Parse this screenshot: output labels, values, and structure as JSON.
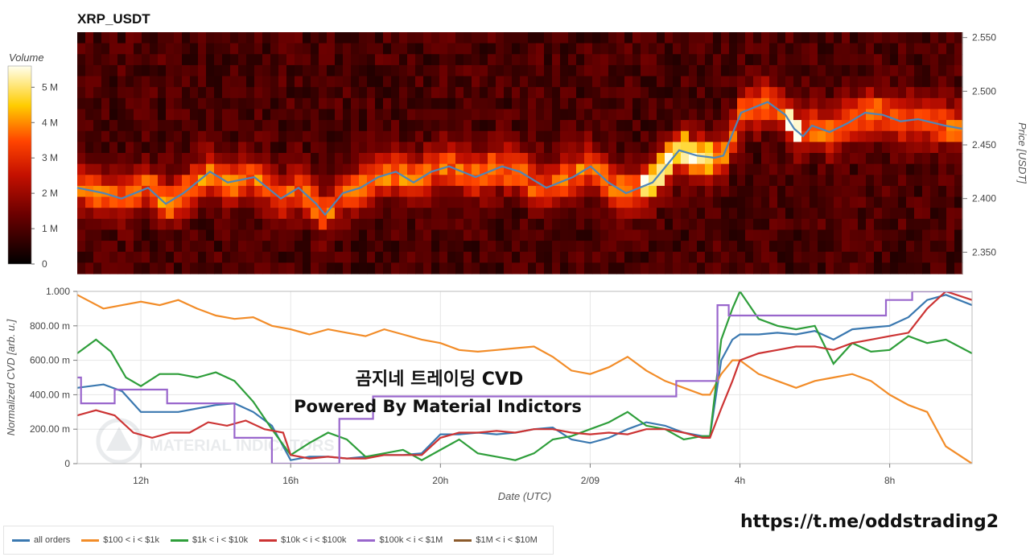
{
  "title": "XRP_USDT",
  "link_text": "https://t.me/oddstrading2",
  "overlay_title": "곰지네 트레이딩 CVD",
  "overlay_subtitle": "Powered By Material Indictors",
  "watermark": "MATERIAL INDICATORS",
  "colors": {
    "all_orders": "#3a78b0",
    "s100_1k": "#f28c28",
    "s1k_10k": "#2e9e3a",
    "s10k_100k": "#cc3333",
    "s100k_1m": "#9966cc",
    "s1m_10m": "#8b5a2b"
  },
  "chart_data": [
    {
      "type": "heatmap",
      "title": "XRP_USDT",
      "ylabel": "Price [USDT]",
      "ylim": [
        2.33,
        2.555
      ],
      "yticks": [
        "2.550",
        "2.500",
        "2.450",
        "2.400",
        "2.350"
      ],
      "ytick_values": [
        2.55,
        2.5,
        2.45,
        2.4,
        2.35
      ],
      "colorbar": {
        "label": "Volume",
        "ticks": [
          "5 M",
          "4 M",
          "3 M",
          "2 M",
          "1 M",
          "0"
        ],
        "tick_values": [
          5,
          4,
          3,
          2,
          1,
          0
        ],
        "range": [
          0,
          5.6
        ]
      },
      "price_line": {
        "color": "#4f86b8",
        "x": [
          0,
          0.03,
          0.05,
          0.08,
          0.1,
          0.12,
          0.15,
          0.17,
          0.2,
          0.23,
          0.25,
          0.27,
          0.28,
          0.3,
          0.32,
          0.34,
          0.36,
          0.38,
          0.4,
          0.42,
          0.45,
          0.48,
          0.5,
          0.53,
          0.56,
          0.58,
          0.6,
          0.62,
          0.65,
          0.68,
          0.7,
          0.72,
          0.73,
          0.75,
          0.78,
          0.8,
          0.81,
          0.82,
          0.83,
          0.85,
          0.87,
          0.89,
          0.91,
          0.93,
          0.95,
          0.97,
          0.98,
          1.0
        ],
        "y": [
          2.41,
          2.405,
          2.4,
          2.41,
          2.395,
          2.405,
          2.425,
          2.415,
          2.42,
          2.4,
          2.41,
          2.395,
          2.385,
          2.405,
          2.41,
          2.42,
          2.425,
          2.415,
          2.425,
          2.43,
          2.42,
          2.43,
          2.425,
          2.41,
          2.42,
          2.43,
          2.415,
          2.405,
          2.415,
          2.445,
          2.44,
          2.438,
          2.44,
          2.48,
          2.49,
          2.478,
          2.465,
          2.458,
          2.468,
          2.462,
          2.47,
          2.48,
          2.478,
          2.472,
          2.474,
          2.47,
          2.468,
          2.465
        ]
      }
    },
    {
      "type": "line",
      "xlabel": "Date (UTC)",
      "ylabel": "Normalized CVD [arb. u.]",
      "xlim": [
        10.3,
        34.2
      ],
      "ylim": [
        0,
        1
      ],
      "x_ticks": [
        "12h",
        "16h",
        "20h",
        "2/09",
        "4h",
        "8h"
      ],
      "x_tick_values": [
        12,
        16,
        20,
        24,
        28,
        32
      ],
      "y_ticks": [
        "1.000",
        "800.00 m",
        "600.00 m",
        "400.00 m",
        "200.00 m",
        "0"
      ],
      "y_tick_values": [
        1,
        0.8,
        0.6,
        0.4,
        0.2,
        0
      ],
      "series": [
        {
          "name": "all orders",
          "color_key": "all_orders",
          "x": [
            10.3,
            11.0,
            11.5,
            12.0,
            12.5,
            13.0,
            13.5,
            14.0,
            14.5,
            15.0,
            15.5,
            16.0,
            16.5,
            17.0,
            17.5,
            18.0,
            18.5,
            19.0,
            19.5,
            20.0,
            20.5,
            21.0,
            21.5,
            22.0,
            22.5,
            23.0,
            23.5,
            24.0,
            24.5,
            25.0,
            25.5,
            26.0,
            26.5,
            27.0,
            27.2,
            27.5,
            27.8,
            28.0,
            28.5,
            29.0,
            29.5,
            30.0,
            30.5,
            31.0,
            31.5,
            32.0,
            32.5,
            33.0,
            33.5,
            34.2
          ],
          "y": [
            0.44,
            0.46,
            0.42,
            0.3,
            0.3,
            0.3,
            0.32,
            0.34,
            0.35,
            0.3,
            0.22,
            0.02,
            0.04,
            0.04,
            0.03,
            0.04,
            0.05,
            0.05,
            0.06,
            0.17,
            0.17,
            0.18,
            0.17,
            0.18,
            0.2,
            0.21,
            0.14,
            0.12,
            0.15,
            0.2,
            0.24,
            0.22,
            0.18,
            0.16,
            0.16,
            0.6,
            0.72,
            0.75,
            0.75,
            0.76,
            0.75,
            0.77,
            0.72,
            0.78,
            0.79,
            0.8,
            0.85,
            0.95,
            0.98,
            0.92
          ]
        },
        {
          "name": "$100 < i < $1k",
          "color_key": "s100_1k",
          "x": [
            10.3,
            11.0,
            11.5,
            12.0,
            12.5,
            13.0,
            13.5,
            14.0,
            14.5,
            15.0,
            15.5,
            16.0,
            16.5,
            17.0,
            17.5,
            18.0,
            18.5,
            19.0,
            19.5,
            20.0,
            20.5,
            21.0,
            21.5,
            22.0,
            22.5,
            23.0,
            23.5,
            24.0,
            24.5,
            25.0,
            25.5,
            26.0,
            26.5,
            27.0,
            27.2,
            27.5,
            27.8,
            28.0,
            28.5,
            29.0,
            29.5,
            30.0,
            30.5,
            31.0,
            31.5,
            32.0,
            32.5,
            33.0,
            33.5,
            34.2
          ],
          "y": [
            0.98,
            0.9,
            0.92,
            0.94,
            0.92,
            0.95,
            0.9,
            0.86,
            0.84,
            0.85,
            0.8,
            0.78,
            0.75,
            0.78,
            0.76,
            0.74,
            0.78,
            0.75,
            0.72,
            0.7,
            0.66,
            0.65,
            0.66,
            0.67,
            0.68,
            0.62,
            0.54,
            0.52,
            0.56,
            0.62,
            0.54,
            0.48,
            0.44,
            0.4,
            0.4,
            0.52,
            0.6,
            0.6,
            0.52,
            0.48,
            0.44,
            0.48,
            0.5,
            0.52,
            0.48,
            0.4,
            0.34,
            0.3,
            0.1,
            0.0
          ]
        },
        {
          "name": "$1k < i < $10k",
          "color_key": "s1k_10k",
          "x": [
            10.3,
            10.8,
            11.2,
            11.6,
            12.0,
            12.5,
            13.0,
            13.5,
            14.0,
            14.5,
            15.0,
            15.5,
            16.0,
            16.5,
            17.0,
            17.5,
            18.0,
            18.5,
            19.0,
            19.5,
            20.0,
            20.5,
            21.0,
            21.5,
            22.0,
            22.5,
            23.0,
            23.5,
            24.0,
            24.5,
            25.0,
            25.5,
            26.0,
            26.5,
            27.0,
            27.2,
            27.5,
            27.8,
            28.0,
            28.5,
            29.0,
            29.5,
            30.0,
            30.5,
            31.0,
            31.5,
            32.0,
            32.5,
            33.0,
            33.5,
            34.2
          ],
          "y": [
            0.64,
            0.72,
            0.65,
            0.5,
            0.45,
            0.52,
            0.52,
            0.5,
            0.53,
            0.48,
            0.36,
            0.2,
            0.05,
            0.12,
            0.18,
            0.14,
            0.04,
            0.06,
            0.08,
            0.02,
            0.08,
            0.14,
            0.06,
            0.04,
            0.02,
            0.06,
            0.14,
            0.16,
            0.2,
            0.24,
            0.3,
            0.22,
            0.2,
            0.14,
            0.16,
            0.16,
            0.72,
            0.9,
            1.0,
            0.84,
            0.8,
            0.78,
            0.8,
            0.58,
            0.7,
            0.65,
            0.66,
            0.74,
            0.7,
            0.72,
            0.64
          ]
        },
        {
          "name": "$10k < i < $100k",
          "color_key": "s10k_100k",
          "x": [
            10.3,
            10.8,
            11.3,
            11.8,
            12.3,
            12.8,
            13.3,
            13.8,
            14.3,
            14.8,
            15.3,
            15.8,
            16.0,
            16.5,
            17.0,
            17.5,
            18.0,
            18.5,
            19.0,
            19.5,
            20.0,
            20.5,
            21.0,
            21.5,
            22.0,
            22.5,
            23.0,
            23.5,
            24.0,
            24.5,
            25.0,
            25.5,
            26.0,
            26.5,
            27.0,
            27.2,
            27.5,
            27.8,
            28.0,
            28.5,
            29.0,
            29.5,
            30.0,
            30.5,
            31.0,
            31.5,
            32.0,
            32.5,
            33.0,
            33.5,
            34.2
          ],
          "y": [
            0.28,
            0.31,
            0.28,
            0.18,
            0.15,
            0.18,
            0.18,
            0.24,
            0.22,
            0.25,
            0.2,
            0.18,
            0.05,
            0.03,
            0.04,
            0.03,
            0.03,
            0.05,
            0.05,
            0.05,
            0.15,
            0.18,
            0.18,
            0.19,
            0.18,
            0.2,
            0.2,
            0.18,
            0.17,
            0.18,
            0.17,
            0.2,
            0.2,
            0.18,
            0.15,
            0.15,
            0.32,
            0.48,
            0.6,
            0.64,
            0.66,
            0.68,
            0.68,
            0.66,
            0.7,
            0.72,
            0.74,
            0.76,
            0.9,
            1.0,
            0.95
          ]
        },
        {
          "name": "$100k < i < $1M",
          "color_key": "s100k_1m",
          "x": [
            10.3,
            10.4,
            10.4,
            11.3,
            11.3,
            12.7,
            12.7,
            14.5,
            14.5,
            15.5,
            15.5,
            17.3,
            17.3,
            18.2,
            18.2,
            26.3,
            26.3,
            27.4,
            27.4,
            27.7,
            27.7,
            31.9,
            31.9,
            32.6,
            32.6,
            34.2
          ],
          "y": [
            0.5,
            0.5,
            0.35,
            0.35,
            0.43,
            0.43,
            0.35,
            0.35,
            0.15,
            0.15,
            0.0,
            0.0,
            0.26,
            0.26,
            0.39,
            0.39,
            0.48,
            0.48,
            0.92,
            0.92,
            0.86,
            0.86,
            0.95,
            0.95,
            1.0,
            1.0
          ]
        },
        {
          "name": "$1M < i < $10M",
          "color_key": "s1m_10m",
          "x": [],
          "y": []
        }
      ]
    }
  ]
}
